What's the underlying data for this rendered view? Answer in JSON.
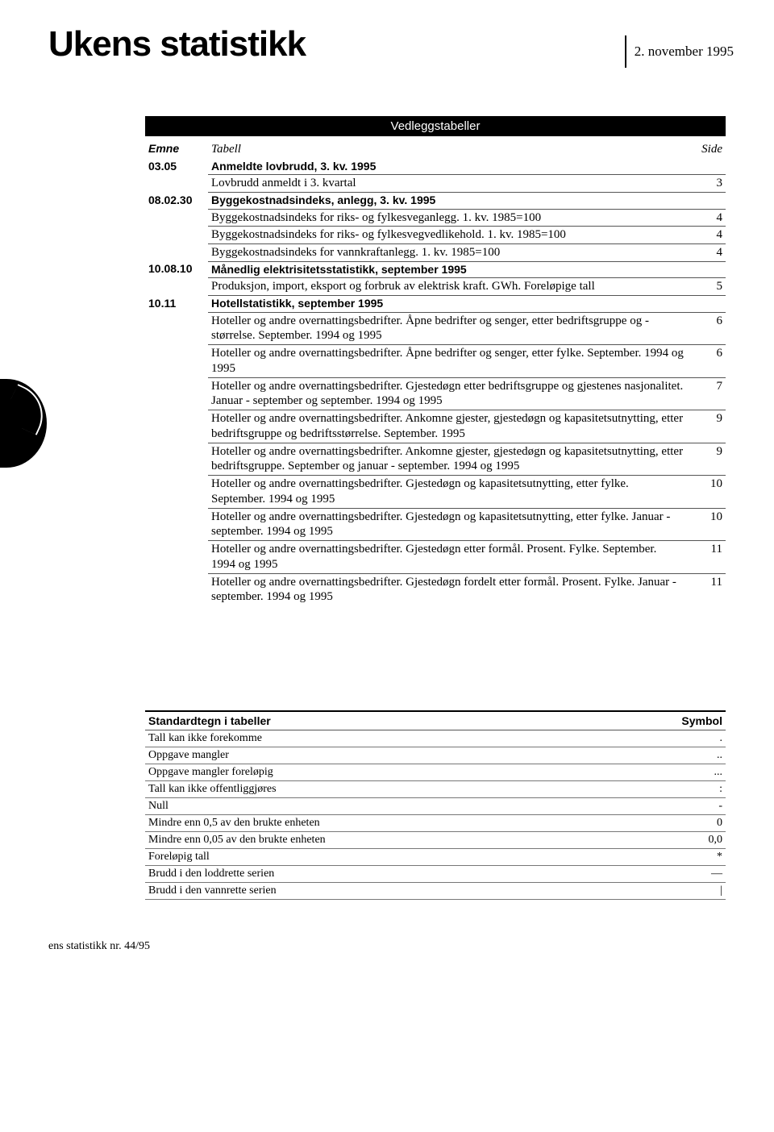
{
  "header": {
    "title": "Ukens statistikk",
    "date": "2. november 1995"
  },
  "banner": "Vedleggstabeller",
  "columns": {
    "emne": "Emne",
    "tabell": "Tabell",
    "side": "Side"
  },
  "rows": [
    {
      "code": "03.05",
      "label": "Anmeldte lovbrudd, 3. kv. 1995",
      "page": "",
      "bold": true,
      "rule": false
    },
    {
      "code": "",
      "label": "Lovbrudd anmeldt i 3. kvartal",
      "page": "3",
      "bold": false,
      "rule": true
    },
    {
      "code": "08.02.30",
      "label": "Byggekostnadsindeks, anlegg, 3. kv. 1995",
      "page": "",
      "bold": true,
      "rule": true
    },
    {
      "code": "",
      "label": "Byggekostnadsindeks for riks- og fylkesveganlegg. 1. kv. 1985=100",
      "page": "4",
      "bold": false,
      "rule": true
    },
    {
      "code": "",
      "label": "Byggekostnadsindeks for riks- og fylkesvegvedlikehold. 1. kv. 1985=100",
      "page": "4",
      "bold": false,
      "rule": true
    },
    {
      "code": "",
      "label": "Byggekostnadsindeks for vannkraftanlegg. 1. kv. 1985=100",
      "page": "4",
      "bold": false,
      "rule": true
    },
    {
      "code": "10.08.10",
      "label": "Månedlig elektrisitetsstatistikk, september 1995",
      "page": "",
      "bold": true,
      "rule": true
    },
    {
      "code": "",
      "label": "Produksjon, import, eksport og forbruk av elektrisk kraft. GWh. Foreløpige tall",
      "page": "5",
      "bold": false,
      "rule": true
    },
    {
      "code": "10.11",
      "label": "Hotellstatistikk, september 1995",
      "page": "",
      "bold": true,
      "rule": true
    },
    {
      "code": "",
      "label": "Hoteller og andre overnattingsbedrifter. Åpne bedrifter og senger, etter bedriftsgruppe og -størrelse. September. 1994 og 1995",
      "page": "6",
      "bold": false,
      "rule": true
    },
    {
      "code": "",
      "label": "Hoteller og andre overnattingsbedrifter. Åpne bedrifter og senger, etter fylke. September. 1994 og 1995",
      "page": "6",
      "bold": false,
      "rule": true
    },
    {
      "code": "",
      "label": "Hoteller og andre overnattingsbedrifter. Gjestedøgn etter bedriftsgruppe og gjestenes nasjonalitet. Januar - september og september. 1994 og 1995",
      "page": "7",
      "bold": false,
      "rule": true
    },
    {
      "code": "",
      "label": "Hoteller og andre overnattingsbedrifter. Ankomne gjester, gjestedøgn og kapasitetsutnytting, etter bedriftsgruppe og bedriftsstørrelse. September. 1995",
      "page": "9",
      "bold": false,
      "rule": true
    },
    {
      "code": "",
      "label": "Hoteller og andre overnattingsbedrifter. Ankomne gjester, gjestedøgn og kapasitetsutnytting, etter bedriftsgruppe. September og januar - september. 1994 og 1995",
      "page": "9",
      "bold": false,
      "rule": true
    },
    {
      "code": "",
      "label": "Hoteller og andre overnattingsbedrifter. Gjestedøgn og kapasitetsutnytting, etter fylke. September. 1994 og 1995",
      "page": "10",
      "bold": false,
      "rule": true
    },
    {
      "code": "",
      "label": "Hoteller og andre overnattingsbedrifter. Gjestedøgn og kapasitetsutnytting, etter fylke. Januar - september. 1994 og 1995",
      "page": "10",
      "bold": false,
      "rule": true
    },
    {
      "code": "",
      "label": "Hoteller og andre overnattingsbedrifter. Gjestedøgn etter formål. Prosent. Fylke. September. 1994 og 1995",
      "page": "11",
      "bold": false,
      "rule": true
    },
    {
      "code": "",
      "label": "Hoteller og andre overnattingsbedrifter. Gjestedøgn fordelt etter formål. Prosent. Fylke. Januar - september. 1994 og 1995",
      "page": "11",
      "bold": false,
      "rule": true
    }
  ],
  "symbols": {
    "header_left": "Standardtegn i tabeller",
    "header_right": "Symbol",
    "rows": [
      {
        "desc": "Tall kan ikke forekomme",
        "sym": "."
      },
      {
        "desc": "Oppgave mangler",
        "sym": ".."
      },
      {
        "desc": "Oppgave mangler foreløpig",
        "sym": "..."
      },
      {
        "desc": "Tall kan ikke offentliggjøres",
        "sym": ":"
      },
      {
        "desc": "Null",
        "sym": "-"
      },
      {
        "desc": "Mindre enn 0,5 av den brukte enheten",
        "sym": "0"
      },
      {
        "desc": "Mindre enn 0,05 av den brukte enheten",
        "sym": "0,0"
      },
      {
        "desc": "Foreløpig tall",
        "sym": "*"
      },
      {
        "desc": "Brudd i den loddrette serien",
        "sym": "—"
      },
      {
        "desc": "Brudd i den vannrette serien",
        "sym": "|"
      }
    ]
  },
  "footer": "ens statistikk nr. 44/95",
  "style": {
    "background": "#ffffff",
    "text": "#000000",
    "banner_bg": "#000000",
    "banner_fg": "#ffffff",
    "rule_color": "#555555",
    "title_fontsize": 44,
    "body_fontsize": 15
  }
}
